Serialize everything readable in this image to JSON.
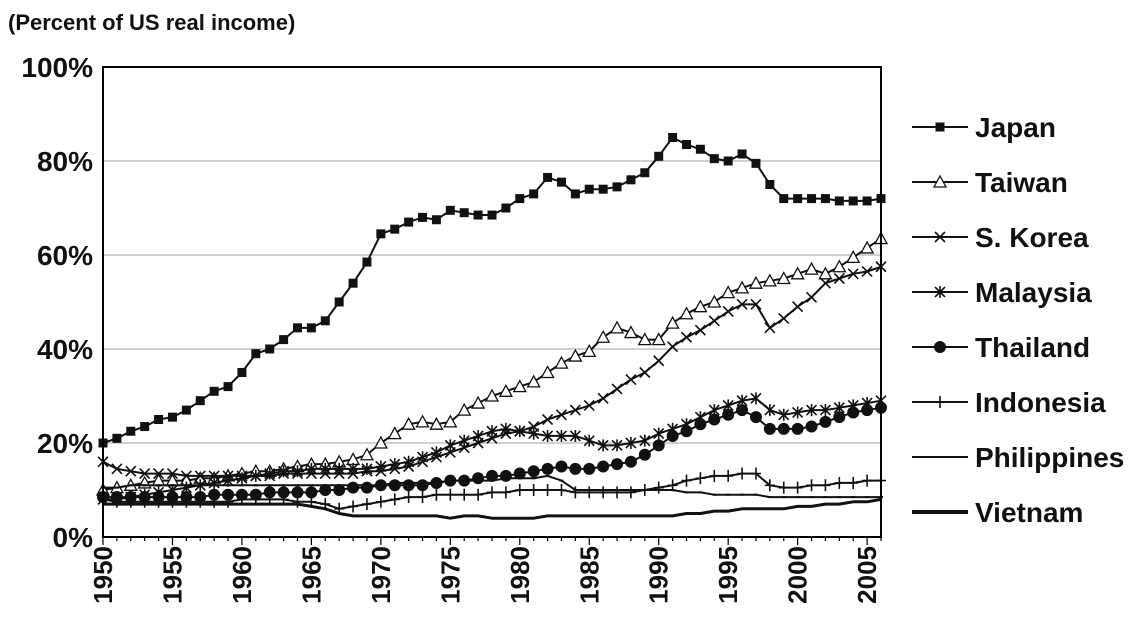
{
  "chart_data": {
    "type": "line",
    "unit_label": "(Percent of US real income)",
    "x": [
      1950,
      1951,
      1952,
      1953,
      1954,
      1955,
      1956,
      1957,
      1958,
      1959,
      1960,
      1961,
      1962,
      1963,
      1964,
      1965,
      1966,
      1967,
      1968,
      1969,
      1970,
      1971,
      1972,
      1973,
      1974,
      1975,
      1976,
      1977,
      1978,
      1979,
      1980,
      1981,
      1982,
      1983,
      1984,
      1985,
      1986,
      1987,
      1988,
      1989,
      1990,
      1991,
      1992,
      1993,
      1994,
      1995,
      1996,
      1997,
      1998,
      1999,
      2000,
      2001,
      2002,
      2003,
      2004,
      2005,
      2006
    ],
    "xticks": [
      1950,
      1955,
      1960,
      1965,
      1970,
      1975,
      1980,
      1985,
      1990,
      1995,
      2000,
      2005
    ],
    "ylim": [
      0,
      100
    ],
    "yticks": [
      0,
      20,
      40,
      60,
      80,
      100
    ],
    "ytick_labels": [
      "0%",
      "20%",
      "40%",
      "60%",
      "80%",
      "100%"
    ],
    "grid": true,
    "legend_position": "right",
    "series": [
      {
        "name": "Japan",
        "marker": "square-filled",
        "values": [
          20,
          21,
          22.5,
          23.5,
          25,
          25.5,
          27,
          29,
          31,
          32,
          35,
          39,
          40,
          42,
          44.5,
          44.5,
          46,
          50,
          54,
          58.5,
          64.5,
          65.5,
          67,
          68,
          67.5,
          69.5,
          69,
          68.5,
          68.5,
          70,
          72,
          73,
          76.5,
          75.5,
          73,
          74,
          74,
          74.5,
          76,
          77.5,
          81,
          85,
          83.5,
          82.5,
          80.5,
          80,
          81.5,
          79.5,
          75,
          72,
          72,
          72,
          72,
          71.5,
          71.5,
          71.5,
          72
        ]
      },
      {
        "name": "Taiwan",
        "marker": "triangle-open",
        "values": [
          10,
          10.5,
          11,
          11.5,
          12,
          12,
          12,
          12.5,
          12.5,
          13,
          13.5,
          14,
          14,
          14.5,
          15,
          15.5,
          15.5,
          16,
          16.5,
          17.5,
          20,
          22,
          24,
          24.5,
          24,
          24.5,
          27,
          28.5,
          30,
          31,
          32,
          33,
          35,
          37,
          38.5,
          39.5,
          42.5,
          44.5,
          43.5,
          42,
          42,
          45.5,
          47.5,
          49,
          50,
          52,
          53,
          54,
          54.5,
          55,
          56,
          57,
          56,
          57.5,
          59.5,
          61.5,
          63.5
        ]
      },
      {
        "name": "S. Korea",
        "marker": "x",
        "values": [
          16,
          14.5,
          14,
          13.5,
          13.5,
          13.5,
          13,
          13,
          13,
          13,
          13,
          13,
          13,
          13.5,
          13.5,
          13.5,
          13.5,
          13.5,
          13.5,
          14,
          14,
          14.5,
          15,
          16,
          17,
          18,
          19,
          20,
          21,
          22,
          22.5,
          23.5,
          25,
          26,
          27,
          28,
          29.5,
          31.5,
          33.5,
          35,
          37.5,
          40.5,
          42.5,
          44,
          46,
          48,
          49.5,
          49.5,
          44.5,
          46.5,
          49,
          51,
          54,
          55,
          56,
          56.5,
          57.5
        ]
      },
      {
        "name": "Malaysia",
        "marker": "asterisk",
        "values": [
          8,
          8,
          8.5,
          9,
          9.5,
          10,
          10.5,
          11,
          11.5,
          12,
          12.5,
          13,
          13.5,
          14,
          14,
          14.5,
          14.5,
          14.5,
          14.5,
          14.5,
          15,
          15.5,
          16,
          17,
          18,
          19.5,
          20.5,
          21.5,
          22.5,
          23,
          22.5,
          22,
          21.5,
          21.5,
          21.5,
          20.5,
          19.5,
          19.5,
          20,
          20.5,
          22,
          23,
          24,
          25.5,
          27,
          28,
          29,
          29.5,
          27,
          26,
          26.5,
          27,
          27,
          27.5,
          28,
          28.5,
          29
        ]
      },
      {
        "name": "Thailand",
        "marker": "circle-filled",
        "values": [
          8.5,
          8.5,
          8.5,
          8.5,
          8.5,
          8.5,
          8.5,
          8.5,
          9,
          9,
          9,
          9,
          9.5,
          9.5,
          9.5,
          9.5,
          10,
          10,
          10.5,
          10.5,
          11,
          11,
          11,
          11,
          11.5,
          12,
          12,
          12.5,
          13,
          13,
          13.5,
          14,
          14.5,
          15,
          14.5,
          14.5,
          15,
          15.5,
          16,
          17.5,
          19.5,
          21.5,
          22.5,
          24,
          25,
          26,
          27,
          25.5,
          23,
          23,
          23,
          23.5,
          24.5,
          25.5,
          26.5,
          27,
          27.5
        ]
      },
      {
        "name": "Indonesia",
        "marker": "plus",
        "values": [
          8,
          7.5,
          7.5,
          7.5,
          7.5,
          7.5,
          7.5,
          7.5,
          7.5,
          7.5,
          8,
          8,
          8,
          8,
          7.5,
          7.5,
          7,
          6,
          6.5,
          7,
          7.5,
          8,
          8.5,
          8.5,
          9,
          9,
          9,
          9,
          9.5,
          9.5,
          10,
          10,
          10,
          10,
          9.5,
          9.5,
          9.5,
          9.5,
          9.5,
          10,
          10.5,
          11,
          12,
          12.5,
          13,
          13,
          13.5,
          13.5,
          11,
          10.5,
          10.5,
          11,
          11,
          11.5,
          11.5,
          12,
          12
        ]
      },
      {
        "name": "Philippines",
        "marker": "dot",
        "values": [
          10.5,
          10.5,
          11,
          11,
          11,
          11,
          11,
          11,
          11,
          11,
          11,
          11,
          11,
          11,
          11,
          11,
          11,
          11,
          11,
          11,
          11,
          11.5,
          11.5,
          11.5,
          11.5,
          12,
          12,
          12,
          12,
          12.5,
          12.5,
          12.5,
          13,
          12,
          10,
          10,
          10,
          10,
          10,
          10,
          10,
          10,
          9.5,
          9.5,
          9,
          9,
          9,
          9,
          8.5,
          8.5,
          8.5,
          8.5,
          8.5,
          8.5,
          8.5,
          8.5,
          8.5
        ]
      },
      {
        "name": "Vietnam",
        "marker": "none",
        "values": [
          7,
          7,
          7,
          7,
          7,
          7,
          7,
          7,
          7,
          7,
          7,
          7,
          7,
          7,
          7,
          6.5,
          6,
          5,
          4.5,
          4.5,
          4.5,
          4.5,
          4.5,
          4.5,
          4.5,
          4,
          4.5,
          4.5,
          4,
          4,
          4,
          4,
          4.5,
          4.5,
          4.5,
          4.5,
          4.5,
          4.5,
          4.5,
          4.5,
          4.5,
          4.5,
          5,
          5,
          5.5,
          5.5,
          6,
          6,
          6,
          6,
          6.5,
          6.5,
          7,
          7,
          7.5,
          7.5,
          8
        ]
      }
    ]
  }
}
